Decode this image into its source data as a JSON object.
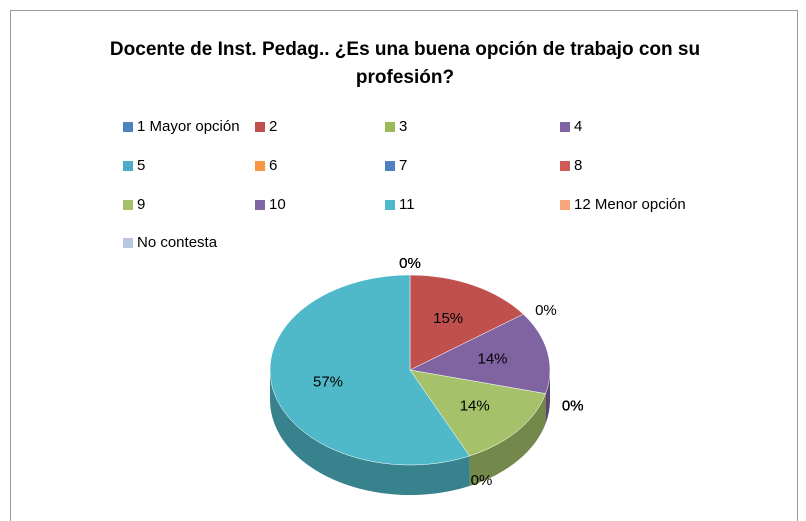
{
  "chart_data": {
    "type": "pie",
    "title": "Docente de Inst. Pedag.. ¿Es una buena opción de trabajo con su profesión?",
    "categories": [
      "1 Mayor opción",
      "2",
      "3",
      "4",
      "5",
      "6",
      "7",
      "8",
      "9",
      "10",
      "11",
      "12 Menor opción",
      "No contesta"
    ],
    "values": [
      0,
      15,
      0,
      14,
      0,
      0,
      0,
      0,
      14,
      0,
      57,
      0,
      0
    ],
    "value_labels": [
      "0%",
      "15%",
      "0%",
      "14%",
      "0%",
      "0%",
      "0%",
      "0%",
      "14%",
      "0%",
      "57%",
      "0%",
      "0%"
    ],
    "colors": [
      "#4f81bd",
      "#c0504d",
      "#9bbb59",
      "#8064a2",
      "#4bacc6",
      "#f79646",
      "#4f7fbf",
      "#d05a57",
      "#a5c26a",
      "#7f65a3",
      "#4fb9c9",
      "#f9a57b",
      "#b9c6e0"
    ],
    "legend": "top"
  }
}
